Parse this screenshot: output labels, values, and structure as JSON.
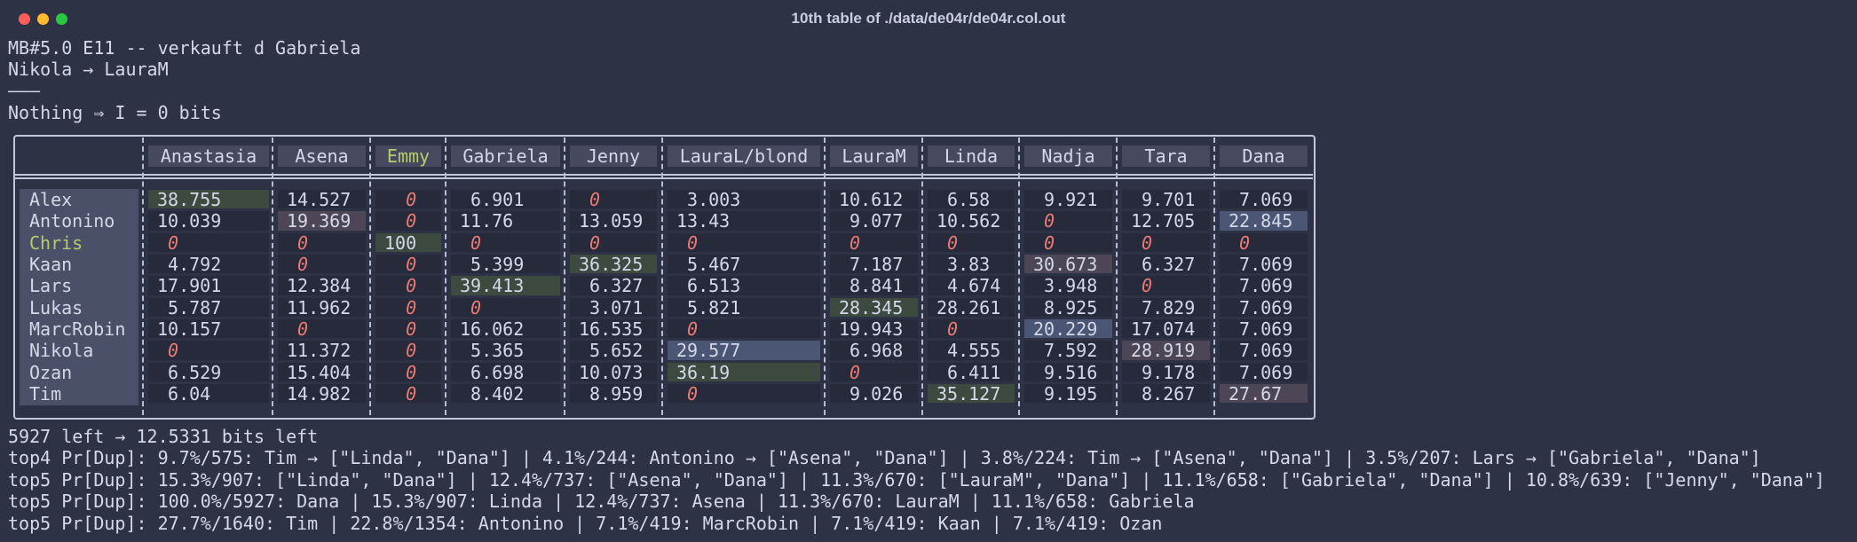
{
  "window": {
    "title": "10th table of ./data/de04r/de04r.col.out"
  },
  "intro": [
    "MB#5.0 E11 -- verkauft d Gabriela",
    "Nikola → LauraM",
    "———",
    "Nothing ⇒ I = 0 bits"
  ],
  "table": {
    "columns": [
      "Anastasia",
      "Asena",
      "Emmy",
      "Gabriela",
      "Jenny",
      "LauraL/blond",
      "LauraM",
      "Linda",
      "Nadja",
      "Tara",
      "Dana"
    ],
    "rows": [
      {
        "label": "Alex",
        "values": [
          38.755,
          14.527,
          0,
          6.901,
          0,
          3.003,
          10.612,
          6.58,
          9.921,
          9.701,
          7.069
        ],
        "highlights": [
          "#3d4a3f",
          null,
          null,
          null,
          null,
          null,
          null,
          null,
          null,
          null,
          null
        ]
      },
      {
        "label": "Antonino",
        "values": [
          10.039,
          19.369,
          0,
          11.76,
          13.059,
          13.43,
          9.077,
          10.562,
          0,
          12.705,
          22.845
        ],
        "highlights": [
          null,
          "#4d4657",
          null,
          null,
          null,
          null,
          null,
          null,
          null,
          null,
          "#4a5673"
        ]
      },
      {
        "label": "Chris",
        "label_color": "#b5cc6a",
        "values": [
          0,
          0,
          100,
          0,
          0,
          0,
          0,
          0,
          0,
          0,
          0
        ],
        "highlights": [
          null,
          null,
          "#3d4a3f",
          null,
          null,
          null,
          null,
          null,
          null,
          null,
          null
        ]
      },
      {
        "label": "Kaan",
        "values": [
          4.792,
          0,
          0,
          5.399,
          36.325,
          5.467,
          7.187,
          3.83,
          30.673,
          6.327,
          7.069
        ],
        "highlights": [
          null,
          null,
          null,
          null,
          "#3d4a3f",
          null,
          null,
          null,
          "#4d4657",
          null,
          null
        ]
      },
      {
        "label": "Lars",
        "values": [
          17.901,
          12.384,
          0,
          39.413,
          6.327,
          6.513,
          8.841,
          4.674,
          3.948,
          0,
          7.069
        ],
        "highlights": [
          null,
          null,
          null,
          "#3d4a3f",
          null,
          null,
          null,
          null,
          null,
          null,
          null
        ]
      },
      {
        "label": "Lukas",
        "values": [
          5.787,
          11.962,
          0,
          0,
          3.071,
          5.821,
          28.345,
          28.261,
          8.925,
          7.829,
          7.069
        ],
        "highlights": [
          null,
          null,
          null,
          null,
          null,
          null,
          "#3d4a3f",
          null,
          null,
          null,
          null
        ]
      },
      {
        "label": "MarcRobin",
        "values": [
          10.157,
          0,
          0,
          16.062,
          16.535,
          0,
          19.943,
          0,
          20.229,
          17.074,
          7.069
        ],
        "highlights": [
          null,
          null,
          null,
          null,
          null,
          null,
          null,
          null,
          "#4a5673",
          null,
          null
        ]
      },
      {
        "label": "Nikola",
        "values": [
          0,
          11.372,
          0,
          5.365,
          5.652,
          29.577,
          6.968,
          4.555,
          7.592,
          28.919,
          7.069
        ],
        "highlights": [
          null,
          null,
          null,
          null,
          null,
          "#4a5673",
          null,
          null,
          null,
          "#4d4657",
          null
        ]
      },
      {
        "label": "Ozan",
        "values": [
          6.529,
          15.404,
          0,
          6.698,
          10.073,
          36.19,
          0,
          6.411,
          9.516,
          9.178,
          7.069
        ],
        "highlights": [
          null,
          null,
          null,
          null,
          null,
          "#3d4a3f",
          null,
          null,
          null,
          null,
          null
        ]
      },
      {
        "label": "Tim",
        "values": [
          6.04,
          14.982,
          0,
          8.402,
          8.959,
          0,
          9.026,
          35.127,
          9.195,
          8.267,
          27.67
        ],
        "highlights": [
          null,
          null,
          null,
          null,
          null,
          null,
          null,
          "#3d4a3f",
          null,
          null,
          "#4d4657"
        ]
      }
    ]
  },
  "footer": [
    "5927 left → 12.5331 bits left",
    "top4 Pr[Dup]: 9.7%/575: Tim → [\"Linda\", \"Dana\"] | 4.1%/244: Antonino → [\"Asena\", \"Dana\"] | 3.8%/224: Tim → [\"Asena\", \"Dana\"] | 3.5%/207: Lars → [\"Gabriela\", \"Dana\"]",
    "top5 Pr[Dup]: 15.3%/907: [\"Linda\", \"Dana\"] | 12.4%/737: [\"Asena\", \"Dana\"] | 11.3%/670: [\"LauraM\", \"Dana\"] | 11.1%/658: [\"Gabriela\", \"Dana\"] | 10.8%/639: [\"Jenny\", \"Dana\"]",
    "top5 Pr[Dup]: 100.0%/5927: Dana | 15.3%/907: Linda | 12.4%/737: Asena | 11.3%/670: LauraM | 11.1%/658: Gabriela",
    "top5 Pr[Dup]: 27.7%/1640: Tim | 22.8%/1354: Antonino | 7.1%/419: MarcRobin | 7.1%/419: Kaan | 7.1%/419: Ozan"
  ]
}
